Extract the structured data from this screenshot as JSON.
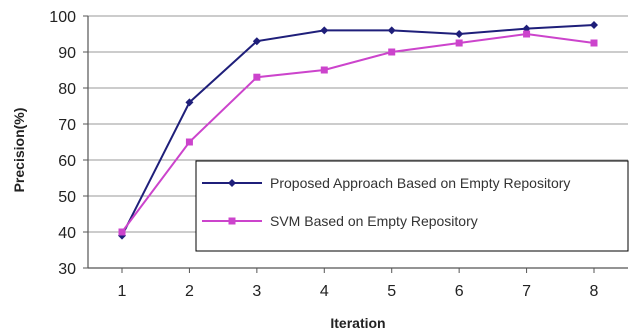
{
  "chart_data": {
    "type": "line",
    "title": "",
    "xlabel": "Iteration",
    "ylabel": "Precision(%)",
    "x": [
      1,
      2,
      3,
      4,
      5,
      6,
      7,
      8
    ],
    "x_tick_labels": [
      "1",
      "2",
      "3",
      "4",
      "5",
      "6",
      "7",
      "8"
    ],
    "ylim": [
      30,
      100
    ],
    "y_ticks": [
      30,
      40,
      50,
      60,
      70,
      80,
      90,
      100
    ],
    "y_tick_labels": [
      "30",
      "40",
      "50",
      "60",
      "70",
      "80",
      "90",
      "100"
    ],
    "grid": "horizontal",
    "legend_position": "lower-right",
    "series": [
      {
        "name": "Proposed Approach Based on Empty Repository",
        "color": "#1f1f7a",
        "marker": "diamond",
        "values": [
          39,
          76,
          93,
          96,
          96,
          95,
          96.5,
          97.5
        ]
      },
      {
        "name": "SVM Based on Empty Repository",
        "color": "#cc44cc",
        "marker": "square",
        "values": [
          40,
          65,
          83,
          85,
          90,
          92.5,
          95,
          92.5
        ]
      }
    ]
  }
}
